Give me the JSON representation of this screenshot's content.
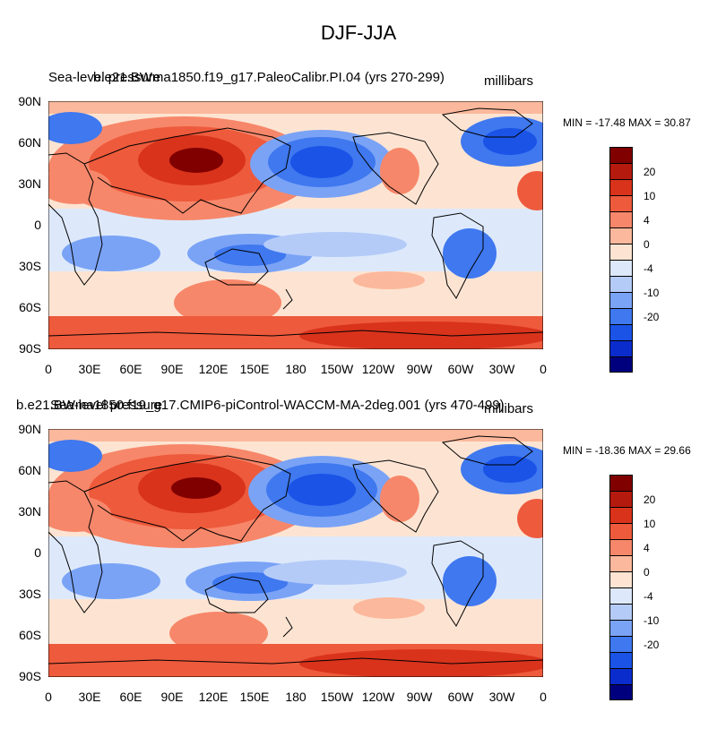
{
  "title": "DJF-JJA",
  "colors": {
    "land_outline": "#000000",
    "palette": [
      "#00007f",
      "#0b2ccd",
      "#1a53e6",
      "#3f78ef",
      "#7aa3f6",
      "#b4cbf8",
      "#dde9fb",
      "#fde4d2",
      "#fcb89c",
      "#f7876a",
      "#ee5a3c",
      "#d9331c",
      "#b51a0e",
      "#800000"
    ]
  },
  "panels": [
    {
      "variable": "Sea-level pressure",
      "case": "b.e21.BWma1850.f19_g17.PaleoCalibr.PI.04 (yrs 270-299)",
      "units": "millibars",
      "min_max": "MIN = -17.48  MAX =  30.87"
    },
    {
      "variable": "Sea-level pressure",
      "case": "b.e21.BWma1850.f19_g17.CMIP6-piControl-WACCM-MA-2deg.001 (yrs 470-499)",
      "units": "millibars",
      "min_max": "MIN = -18.36  MAX =  29.66"
    }
  ],
  "lat_ticks": [
    "90N",
    "60N",
    "30N",
    "0",
    "30S",
    "60S",
    "90S"
  ],
  "lon_ticks": [
    "0",
    "30E",
    "60E",
    "90E",
    "120E",
    "150E",
    "180",
    "150W",
    "120W",
    "90W",
    "60W",
    "30W",
    "0"
  ],
  "colorbar_labels": [
    "20",
    "10",
    "4",
    "0",
    "-4",
    "-10",
    "-20"
  ]
}
